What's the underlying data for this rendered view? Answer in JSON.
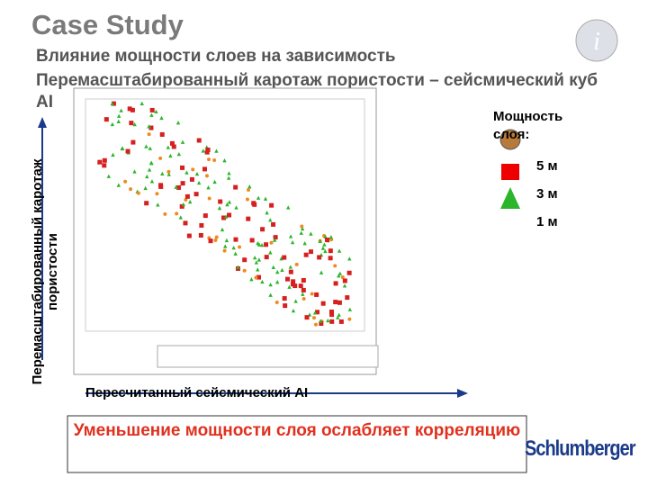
{
  "header": {
    "title": "Case Study",
    "subtitle": "Влияние мощности слоев на зависимость",
    "subtitle2": "Перемасштабированный каротаж пористости – сейсмический куб AI"
  },
  "legend": {
    "title": "Мощность слоя:",
    "items": [
      "5 м",
      "3 м",
      "1 м"
    ]
  },
  "axes": {
    "y_label": "Перемасштабированный каротаж пористости",
    "x_label": "Пересчитанный сейсмический AI"
  },
  "conclusion": "Уменьшение мощности слоя ослабляет корреляцию",
  "logo": "Schlumberger"
}
